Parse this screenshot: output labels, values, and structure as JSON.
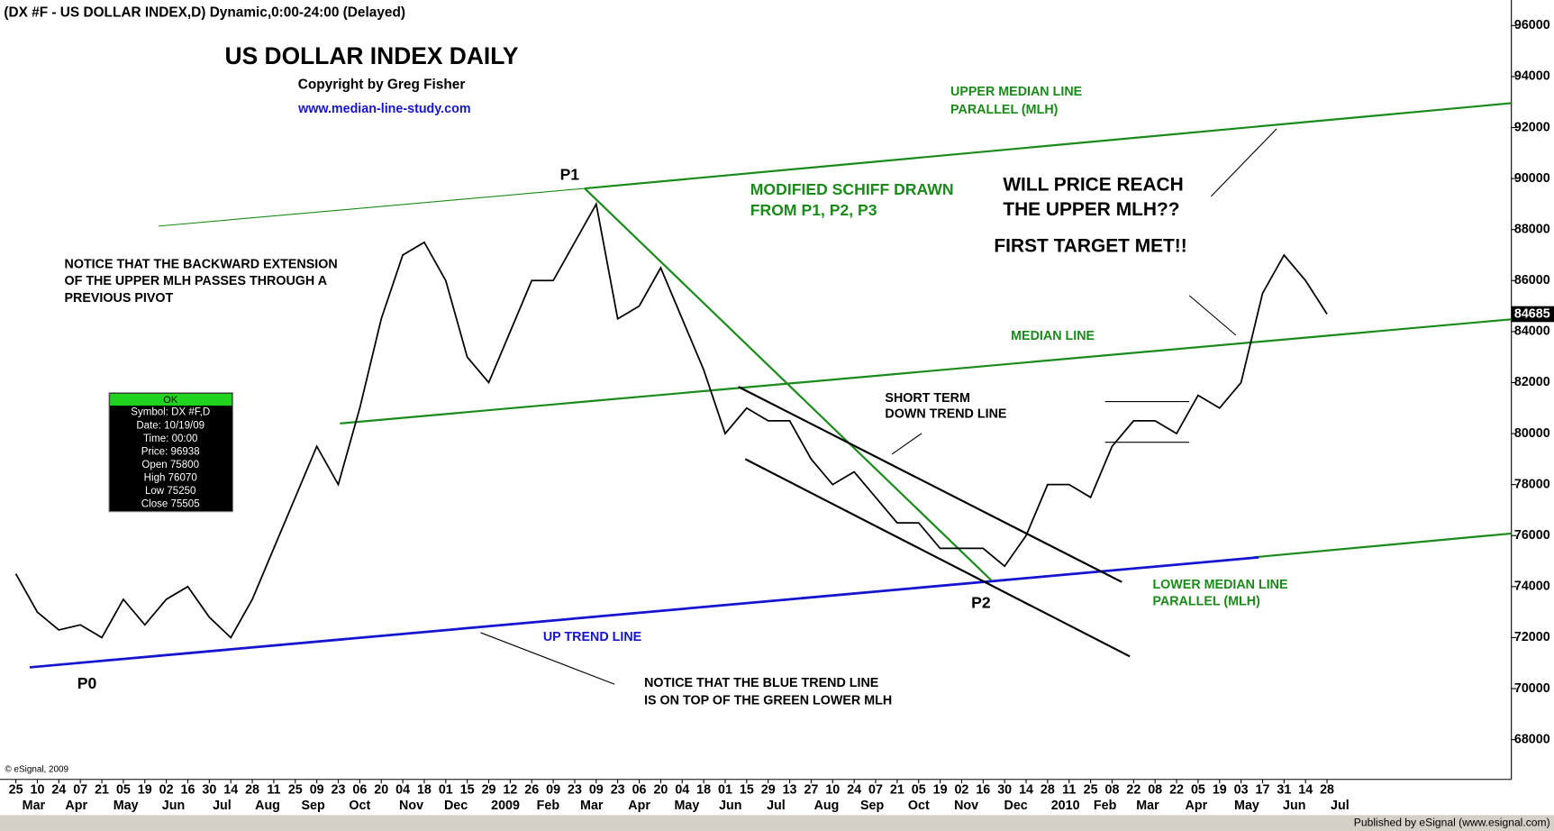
{
  "chart_data": {
    "type": "line",
    "header": "(DX #F - US DOLLAR INDEX,D) Dynamic,0:00-24:00 (Delayed)",
    "title": "US DOLLAR INDEX DAILY",
    "subtitle": "Copyright by Greg Fisher",
    "url": "www.median-line-study.com",
    "annotations": [
      "UPPER MEDIAN LINE",
      "PARALLEL (MLH)",
      "P1",
      "MODIFIED SCHIFF DRAWN",
      "FROM P1, P2, P3",
      "WILL PRICE REACH",
      "THE UPPER MLH??",
      "FIRST TARGET MET!!",
      "NOTICE THAT THE BACKWARD EXTENSION",
      "OF THE UPPER MLH PASSES THROUGH A",
      "PREVIOUS PIVOT",
      "MEDIAN LINE",
      "SHORT TERM",
      "DOWN TREND LINE",
      "LOWER MEDIAN LINE",
      "PARALLEL (MLH)",
      "P2",
      "UP TREND LINE",
      "P0",
      "NOTICE THAT THE BLUE TREND LINE",
      "IS ON TOP OF THE GREEN LOWER MLH"
    ],
    "categories": [
      "25",
      "10",
      "24",
      "07",
      "21",
      "05",
      "19",
      "02",
      "16",
      "30",
      "14",
      "28",
      "11",
      "25",
      "09",
      "23",
      "06",
      "20",
      "04",
      "18",
      "01",
      "15",
      "29",
      "12",
      "26",
      "09",
      "23",
      "09",
      "23",
      "06",
      "20",
      "04",
      "18",
      "01",
      "15",
      "29",
      "13",
      "27",
      "10",
      "24",
      "07",
      "21",
      "05",
      "19",
      "02",
      "16",
      "30",
      "14",
      "28",
      "11",
      "25",
      "08",
      "22",
      "08",
      "22",
      "05",
      "19",
      "03",
      "17",
      "31",
      "14",
      "28"
    ],
    "months": [
      "Mar",
      "Apr",
      "May",
      "Jun",
      "Jul",
      "Aug",
      "Sep",
      "Oct",
      "Nov",
      "Dec",
      "2009",
      "Feb",
      "Mar",
      "Apr",
      "May",
      "Jun",
      "Jul",
      "Aug",
      "Sep",
      "Oct",
      "Nov",
      "Dec",
      "2010",
      "Feb",
      "Mar",
      "Apr",
      "May",
      "Jun",
      "Jul"
    ],
    "values": [
      74500,
      73000,
      72300,
      72500,
      72000,
      73500,
      72500,
      73500,
      74000,
      72800,
      72000,
      73500,
      75500,
      77500,
      79500,
      78000,
      81000,
      84500,
      87000,
      87500,
      86000,
      83000,
      82000,
      84000,
      86000,
      86000,
      87500,
      89000,
      84500,
      85000,
      86500,
      84500,
      82500,
      80000,
      81000,
      80500,
      80500,
      79000,
      78000,
      78500,
      77500,
      76500,
      76500,
      75500,
      75500,
      75500,
      74800,
      76000,
      78000,
      78000,
      77500,
      79500,
      80500,
      80500,
      80000,
      81500,
      81000,
      82000,
      85500,
      87000,
      86000,
      84685
    ],
    "color": "#000000",
    "ylim": [
      66440,
      97000
    ],
    "yticks": [
      68000,
      70000,
      72000,
      74000,
      76000,
      78000,
      80000,
      82000,
      84000,
      86000,
      88000,
      90000,
      92000,
      94000,
      96000
    ],
    "info_box": {
      "status": "OK",
      "lines": [
        "Symbol: DX #F,D",
        "Date: 10/19/09",
        "Time: 00:00",
        "Price: 96938",
        "Open 75800",
        "High 76070",
        "Low 75250",
        "Close 75505"
      ]
    },
    "footer_left": "© eSignal, 2009",
    "footer_right": "Published by eSignal (www.esignal.com)"
  }
}
